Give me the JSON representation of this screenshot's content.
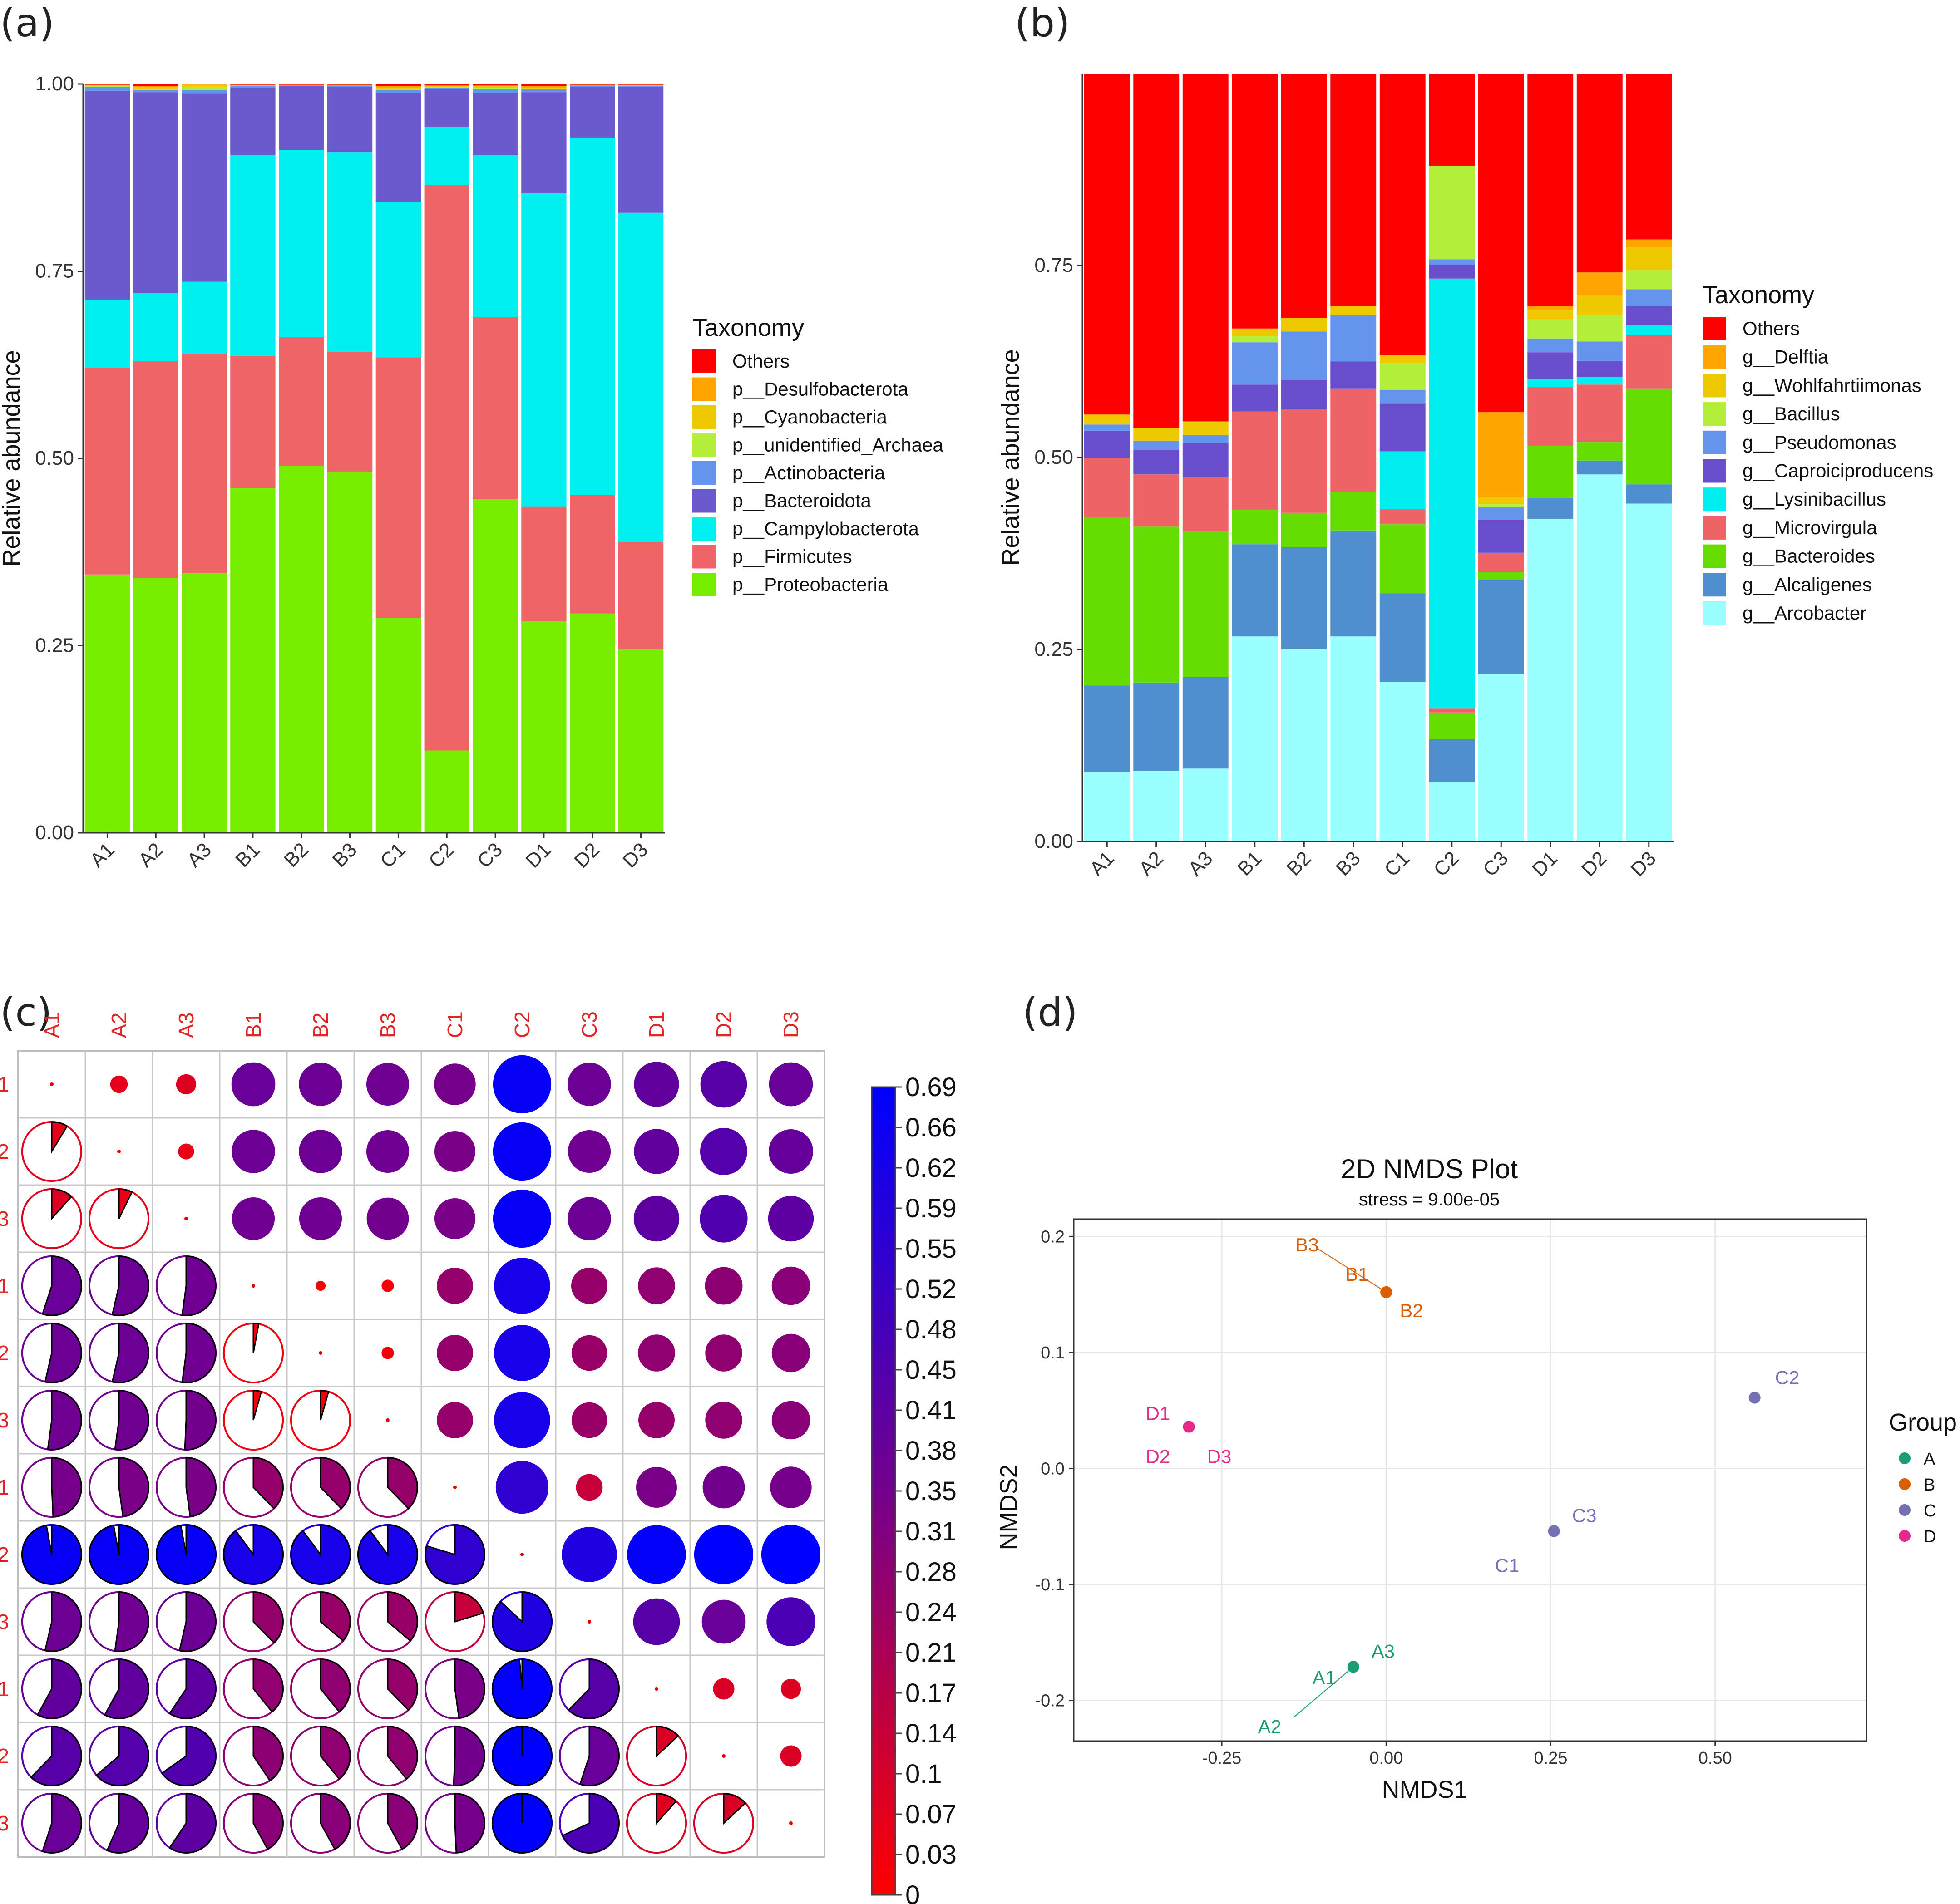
{
  "panels": {
    "a": "(a)",
    "b": "(b)",
    "c": "(c)",
    "d": "(d)"
  },
  "chart_data": [
    {
      "id": "a",
      "type": "bar",
      "stacked": true,
      "ylabel": "Relative abundance",
      "ylim": [
        0,
        1
      ],
      "yticks": [
        "0.00",
        "0.25",
        "0.50",
        "0.75",
        "1.00"
      ],
      "categories": [
        "A1",
        "A2",
        "A3",
        "B1",
        "B2",
        "B3",
        "C1",
        "C2",
        "C3",
        "D1",
        "D2",
        "D3"
      ],
      "legend_title": "Taxonomy",
      "series": [
        {
          "name": "p__Proteobacteria",
          "color": "#77ee00",
          "values": [
            0.345,
            0.34,
            0.347,
            0.46,
            0.49,
            0.482,
            0.287,
            0.11,
            0.446,
            0.283,
            0.293,
            0.245
          ]
        },
        {
          "name": "p__Firmicutes",
          "color": "#ef6464",
          "values": [
            0.276,
            0.29,
            0.293,
            0.177,
            0.172,
            0.16,
            0.348,
            0.755,
            0.243,
            0.153,
            0.158,
            0.143
          ]
        },
        {
          "name": "p__Campylobacterota",
          "color": "#00f0f0",
          "values": [
            0.09,
            0.091,
            0.096,
            0.268,
            0.25,
            0.267,
            0.208,
            0.078,
            0.216,
            0.418,
            0.477,
            0.44
          ]
        },
        {
          "name": "p__Bacteroidota",
          "color": "#6a5acd",
          "values": [
            0.28,
            0.268,
            0.251,
            0.09,
            0.085,
            0.087,
            0.145,
            0.05,
            0.083,
            0.135,
            0.068,
            0.168
          ]
        },
        {
          "name": "p__Actinobacteria",
          "color": "#6495ed",
          "values": [
            0.005,
            0.003,
            0.005,
            0.002,
            0.001,
            0.002,
            0.004,
            0.002,
            0.006,
            0.004,
            0.002,
            0.001
          ]
        },
        {
          "name": "p__unidentified_Archaea",
          "color": "#b3ee3a",
          "values": [
            0.001,
            0.001,
            0.004,
            0.0,
            0.0,
            0.0,
            0.001,
            0.001,
            0.001,
            0.001,
            0.0,
            0.0
          ]
        },
        {
          "name": "p__Cyanobacteria",
          "color": "#eec900",
          "values": [
            0.001,
            0.003,
            0.003,
            0.001,
            0.0,
            0.0,
            0.002,
            0.001,
            0.002,
            0.001,
            0.0,
            0.001
          ]
        },
        {
          "name": "p__Desulfobacterota",
          "color": "#ffa500",
          "values": [
            0.001,
            0.001,
            0.001,
            0.001,
            0.001,
            0.001,
            0.002,
            0.001,
            0.001,
            0.002,
            0.001,
            0.001
          ]
        },
        {
          "name": "Others",
          "color": "#ff0000",
          "values": [
            0.001,
            0.003,
            0.0,
            0.001,
            0.001,
            0.001,
            0.003,
            0.002,
            0.002,
            0.003,
            0.001,
            0.001
          ]
        }
      ]
    },
    {
      "id": "b",
      "type": "bar",
      "stacked": true,
      "ylabel": "Relative abundance",
      "ylim": [
        0,
        1
      ],
      "yticks": [
        "0.00",
        "0.25",
        "0.50",
        "0.75"
      ],
      "categories": [
        "A1",
        "A2",
        "A3",
        "B1",
        "B2",
        "B3",
        "C1",
        "C2",
        "C3",
        "D1",
        "D2",
        "D3"
      ],
      "legend_title": "Taxonomy",
      "series": [
        {
          "name": "g__Arcobacter",
          "color": "#99ffff",
          "values": [
            0.09,
            0.092,
            0.095,
            0.267,
            0.25,
            0.267,
            0.208,
            0.078,
            0.218,
            0.42,
            0.478,
            0.44
          ]
        },
        {
          "name": "g__Alcaligenes",
          "color": "#4f8fcf",
          "values": [
            0.113,
            0.115,
            0.119,
            0.12,
            0.133,
            0.138,
            0.115,
            0.055,
            0.123,
            0.027,
            0.018,
            0.025
          ]
        },
        {
          "name": "g__Bacteroides",
          "color": "#66dd00",
          "values": [
            0.22,
            0.203,
            0.19,
            0.045,
            0.045,
            0.05,
            0.09,
            0.035,
            0.01,
            0.068,
            0.024,
            0.125
          ]
        },
        {
          "name": "g__Microvirgula",
          "color": "#ee6464",
          "values": [
            0.077,
            0.068,
            0.07,
            0.128,
            0.135,
            0.135,
            0.02,
            0.005,
            0.025,
            0.077,
            0.075,
            0.07
          ]
        },
        {
          "name": "g__Lysinibacillus",
          "color": "#00eeee",
          "values": [
            0.0,
            0.0,
            0.0,
            0.0,
            0.0,
            0.0,
            0.075,
            0.56,
            0.0,
            0.01,
            0.01,
            0.012
          ]
        },
        {
          "name": "g__Caproiciproducens",
          "color": "#6a4fcd",
          "values": [
            0.035,
            0.032,
            0.045,
            0.035,
            0.038,
            0.035,
            0.062,
            0.018,
            0.043,
            0.035,
            0.021,
            0.025
          ]
        },
        {
          "name": "g__Pseudomonas",
          "color": "#6495ed",
          "values": [
            0.008,
            0.012,
            0.01,
            0.055,
            0.063,
            0.06,
            0.018,
            0.007,
            0.017,
            0.018,
            0.025,
            0.022
          ]
        },
        {
          "name": "g__Bacillus",
          "color": "#b3ee3a",
          "values": [
            0.0,
            0.0,
            0.0,
            0.008,
            0.0,
            0.0,
            0.035,
            0.122,
            0.003,
            0.025,
            0.035,
            0.025
          ]
        },
        {
          "name": "g__Wohlfahrtiimonas",
          "color": "#eec900",
          "values": [
            0.013,
            0.017,
            0.018,
            0.01,
            0.018,
            0.012,
            0.01,
            0.0,
            0.01,
            0.012,
            0.025,
            0.03
          ]
        },
        {
          "name": "g__Delftia",
          "color": "#ffa500",
          "values": [
            0.0,
            0.0,
            0.0,
            0.0,
            0.0,
            0.0,
            0.0,
            0.0,
            0.11,
            0.005,
            0.03,
            0.01
          ]
        },
        {
          "name": "Others",
          "color": "#ff0000",
          "values": [
            0.444,
            0.461,
            0.453,
            0.332,
            0.318,
            0.303,
            0.367,
            0.12,
            0.441,
            0.303,
            0.259,
            0.216
          ]
        }
      ]
    },
    {
      "id": "c",
      "type": "heatmap",
      "labels": [
        "A1",
        "A2",
        "A3",
        "B1",
        "B2",
        "B3",
        "C1",
        "C2",
        "C3",
        "D1",
        "D2",
        "D3"
      ],
      "colorbar": {
        "min": 0,
        "max": 0.69,
        "ticks": [
          "0.69",
          "0.66",
          "0.62",
          "0.59",
          "0.55",
          "0.52",
          "0.48",
          "0.45",
          "0.41",
          "0.38",
          "0.35",
          "0.31",
          "0.28",
          "0.24",
          "0.21",
          "0.17",
          "0.14",
          "0.1",
          "0.07",
          "0.03",
          "0"
        ]
      },
      "matrix": [
        [
          0,
          0.06,
          0.08,
          0.38,
          0.37,
          0.36,
          0.34,
          0.67,
          0.37,
          0.4,
          0.43,
          0.38
        ],
        [
          0.06,
          0,
          0.05,
          0.37,
          0.37,
          0.36,
          0.33,
          0.67,
          0.36,
          0.4,
          0.44,
          0.39
        ],
        [
          0.08,
          0.05,
          0,
          0.36,
          0.36,
          0.35,
          0.33,
          0.67,
          0.37,
          0.41,
          0.45,
          0.41
        ],
        [
          0.38,
          0.37,
          0.36,
          0,
          0.02,
          0.03,
          0.26,
          0.62,
          0.26,
          0.27,
          0.28,
          0.29
        ],
        [
          0.37,
          0.37,
          0.36,
          0.02,
          0,
          0.03,
          0.26,
          0.62,
          0.25,
          0.27,
          0.27,
          0.29
        ],
        [
          0.36,
          0.36,
          0.35,
          0.03,
          0.03,
          0,
          0.26,
          0.62,
          0.25,
          0.26,
          0.27,
          0.29
        ],
        [
          0.34,
          0.33,
          0.33,
          0.26,
          0.26,
          0.26,
          0,
          0.55,
          0.14,
          0.33,
          0.35,
          0.34
        ],
        [
          0.67,
          0.67,
          0.67,
          0.62,
          0.62,
          0.62,
          0.55,
          0,
          0.6,
          0.68,
          0.69,
          0.69
        ],
        [
          0.37,
          0.36,
          0.37,
          0.26,
          0.25,
          0.25,
          0.14,
          0.6,
          0,
          0.43,
          0.38,
          0.47
        ],
        [
          0.4,
          0.4,
          0.41,
          0.27,
          0.27,
          0.26,
          0.33,
          0.68,
          0.43,
          0,
          0.09,
          0.08
        ],
        [
          0.43,
          0.44,
          0.45,
          0.28,
          0.27,
          0.27,
          0.35,
          0.69,
          0.38,
          0.09,
          0,
          0.09
        ],
        [
          0.38,
          0.39,
          0.41,
          0.29,
          0.29,
          0.29,
          0.34,
          0.69,
          0.47,
          0.08,
          0.09,
          0
        ]
      ]
    },
    {
      "id": "d",
      "type": "scatter",
      "title": "2D NMDS Plot",
      "subtitle": "stress =  9.00e-05",
      "xlabel": "NMDS1",
      "ylabel": "NMDS2",
      "xlim": [
        -0.475,
        0.73
      ],
      "ylim": [
        -0.235,
        0.215
      ],
      "xticks": [
        -0.25,
        0,
        0.25,
        0.5
      ],
      "xtick_labels": [
        "-0.25",
        "0.00",
        "0.25",
        "0.50"
      ],
      "yticks": [
        -0.2,
        -0.1,
        0,
        0.1,
        0.2
      ],
      "ytick_labels": [
        "-0.2",
        "-0.1",
        "0.0",
        "0.1",
        "0.2"
      ],
      "legend_title": "Group",
      "groups": [
        {
          "name": "A",
          "color": "#1b9e77"
        },
        {
          "name": "B",
          "color": "#d95f02"
        },
        {
          "name": "C",
          "color": "#7570b3"
        },
        {
          "name": "D",
          "color": "#e7298a"
        }
      ],
      "points": [
        {
          "id": "A1",
          "group": "A",
          "x": -0.05,
          "y": -0.171
        },
        {
          "id": "A2",
          "group": "A",
          "x": -0.05,
          "y": -0.171
        },
        {
          "id": "A3",
          "group": "A",
          "x": -0.05,
          "y": -0.171
        },
        {
          "id": "B1",
          "group": "B",
          "x": 0.0,
          "y": 0.152
        },
        {
          "id": "B2",
          "group": "B",
          "x": 0.0,
          "y": 0.152
        },
        {
          "id": "B3",
          "group": "B",
          "x": 0.0,
          "y": 0.152
        },
        {
          "id": "C1",
          "group": "C",
          "x": 0.255,
          "y": -0.054
        },
        {
          "id": "C2",
          "group": "C",
          "x": 0.56,
          "y": 0.061
        },
        {
          "id": "C3",
          "group": "C",
          "x": 0.255,
          "y": -0.054
        },
        {
          "id": "D1",
          "group": "D",
          "x": -0.3,
          "y": 0.036
        },
        {
          "id": "D2",
          "group": "D",
          "x": -0.3,
          "y": 0.036
        },
        {
          "id": "D3",
          "group": "D",
          "x": -0.3,
          "y": 0.036
        }
      ]
    }
  ]
}
